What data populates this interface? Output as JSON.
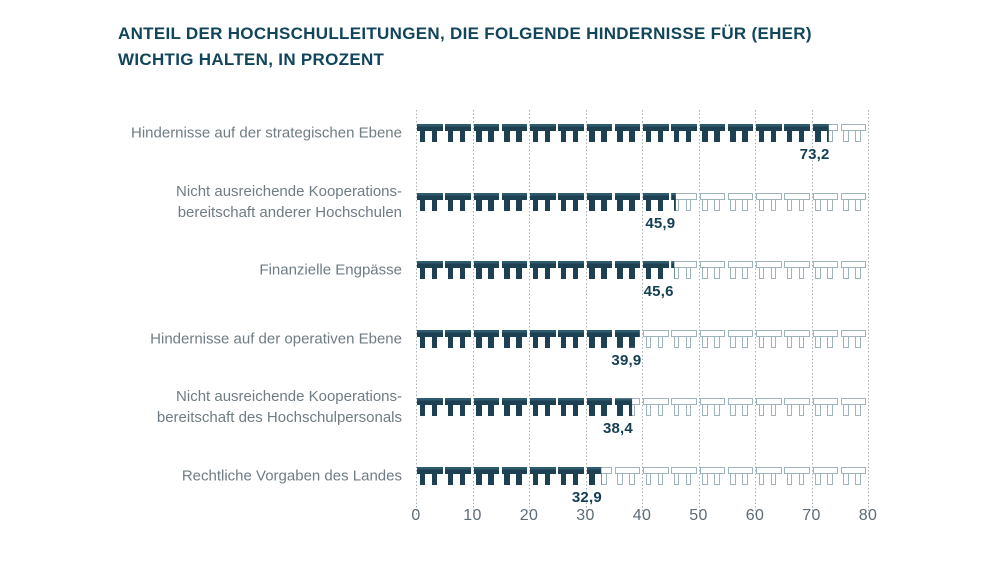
{
  "title": {
    "line1": "ANTEIL DER HOCHSCHULLEITUNGEN, DIE FOLGENDE HINDERNISSE FÜR (EHER)",
    "line2": "WICHTIG HALTEN, IN PROZENT"
  },
  "chart_data": {
    "type": "bar",
    "orientation": "horizontal",
    "pictogram": "table-icon",
    "icon_unit_value": 5,
    "icons_per_row": 16,
    "categories": [
      "Hindernisse auf der strategischen Ebene",
      "Nicht ausreichende Kooperations-\nbereitschaft anderer Hochschulen",
      "Finanzielle Engpässe",
      "Hindernisse auf der operativen Ebene",
      "Nicht ausreichende Kooperations-\nbereitschaft des Hochschulpersonals",
      "Rechtliche Vorgaben des Landes"
    ],
    "values": [
      73.2,
      45.9,
      45.6,
      39.9,
      38.4,
      32.9
    ],
    "value_labels": [
      "73,2",
      "45,9",
      "45,6",
      "39,9",
      "38,4",
      "32,9"
    ],
    "xlim": [
      0,
      80
    ],
    "x_ticks": [
      0,
      10,
      20,
      30,
      40,
      50,
      60,
      70,
      80
    ],
    "grid": "dotted-vertical",
    "legend": "none",
    "colors": {
      "filled": "#1d4153",
      "filled_highlight": "#2f5b6e",
      "outline": "#9fb3bb",
      "value_text": "#133f53",
      "title_text": "#11455c",
      "category_text": "#6f7c83",
      "tick_text": "#5d6c75",
      "gridline": "#a6b0b6",
      "background": "#ffffff"
    }
  }
}
